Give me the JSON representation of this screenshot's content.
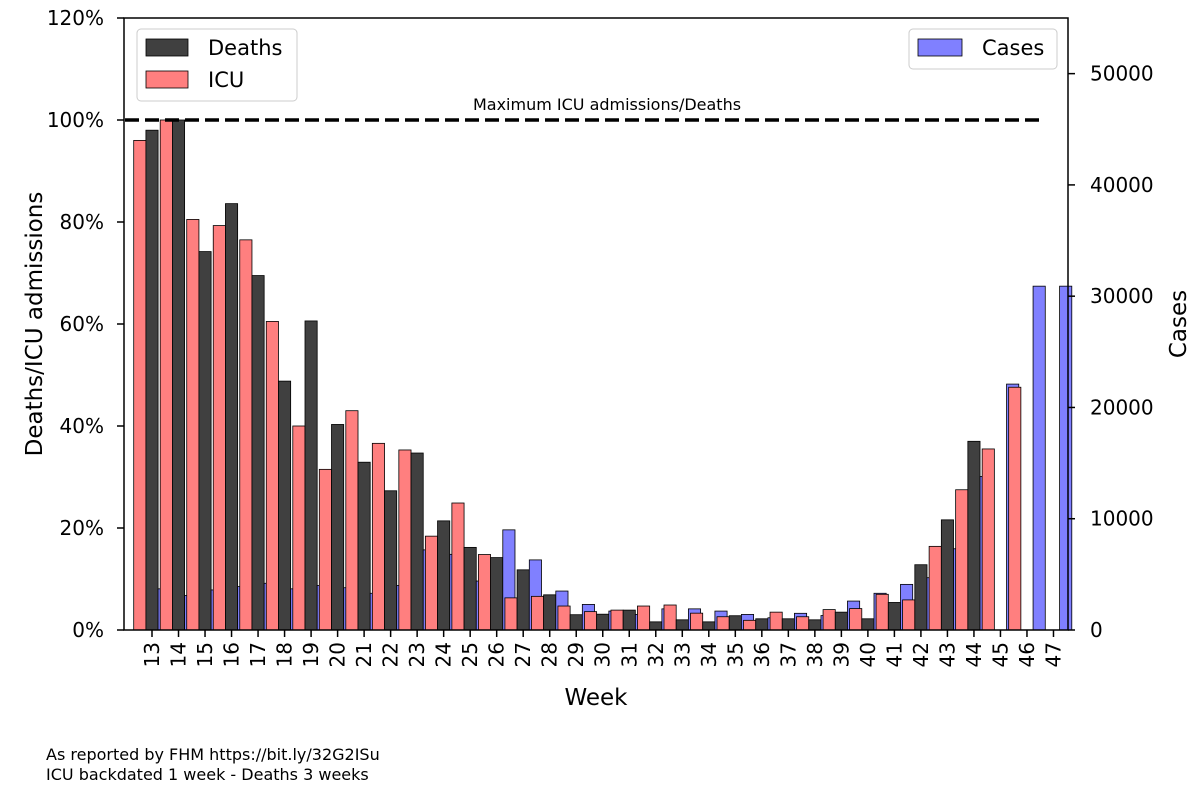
{
  "chart_data": {
    "type": "bar",
    "xlabel": "Week",
    "ylabel_left": "Deaths/ICU admissions",
    "ylabel_right": "Cases",
    "ylim_left": [
      0,
      120
    ],
    "ylim_right": [
      0,
      55000
    ],
    "yticks_left": [
      0,
      20,
      40,
      60,
      80,
      100,
      120
    ],
    "yticks_left_labels": [
      "0%",
      "20%",
      "40%",
      "60%",
      "80%",
      "100%",
      "120%"
    ],
    "yticks_right": [
      0,
      10000,
      20000,
      30000,
      40000,
      50000
    ],
    "yticks_right_labels": [
      "0",
      "10000",
      "20000",
      "30000",
      "40000",
      "50000"
    ],
    "categories": [
      "13",
      "14",
      "15",
      "16",
      "17",
      "18",
      "19",
      "20",
      "21",
      "22",
      "23",
      "24",
      "25",
      "26",
      "27",
      "28",
      "29",
      "30",
      "31",
      "32",
      "33",
      "34",
      "35",
      "36",
      "37",
      "38",
      "39",
      "40",
      "41",
      "42",
      "43",
      "44",
      "45",
      "46",
      "47"
    ],
    "series": [
      {
        "name": "ICU",
        "axis": "left",
        "color": "#ff7f7f",
        "values": [
          96,
          100,
          80.5,
          79.3,
          76.5,
          60.5,
          40,
          31.5,
          43,
          36.6,
          35.3,
          18.4,
          24.9,
          14.8,
          6.3,
          6.6,
          4.7,
          3.6,
          3.9,
          4.7,
          4.9,
          3.3,
          2.6,
          1.9,
          3.5,
          2.6,
          4.0,
          4.2,
          7.0,
          5.9,
          16.4,
          27.5,
          35.5,
          47.6,
          null
        ]
      },
      {
        "name": "Deaths",
        "axis": "left",
        "color": "#404040",
        "values": [
          98,
          100,
          74.2,
          83.6,
          69.5,
          48.8,
          60.6,
          40.3,
          32.9,
          27.3,
          34.7,
          21.4,
          16.2,
          14.2,
          11.8,
          6.9,
          3.0,
          3.1,
          3.9,
          1.6,
          2.0,
          1.6,
          2.8,
          2.2,
          2.2,
          2.0,
          3.5,
          2.2,
          5.4,
          12.8,
          21.6,
          37.0,
          null,
          null,
          null
        ]
      },
      {
        "name": "Cases",
        "axis": "right",
        "color": "#8080ff",
        "values": [
          3700,
          3100,
          3600,
          3900,
          4200,
          3700,
          4000,
          3800,
          3300,
          4000,
          7200,
          6800,
          4400,
          9000,
          6300,
          3500,
          2300,
          1700,
          1400,
          1900,
          1900,
          1700,
          1400,
          1100,
          1500,
          1300,
          2600,
          3300,
          4100,
          4700,
          7300,
          13800,
          22100,
          30900,
          30900
        ]
      }
    ],
    "hline": {
      "value": 100,
      "axis": "left",
      "style": "dashed",
      "label": "Maximum ICU admissions/Deaths"
    },
    "legend_left": [
      "Deaths",
      "ICU"
    ],
    "legend_right": [
      "Cases"
    ],
    "legend_left_position": "top-left",
    "legend_right_position": "top-right"
  },
  "footnote": {
    "line1": "As reported by FHM https://bit.ly/32G2ISu",
    "line2": "ICU backdated 1 week - Deaths 3 weeks"
  }
}
